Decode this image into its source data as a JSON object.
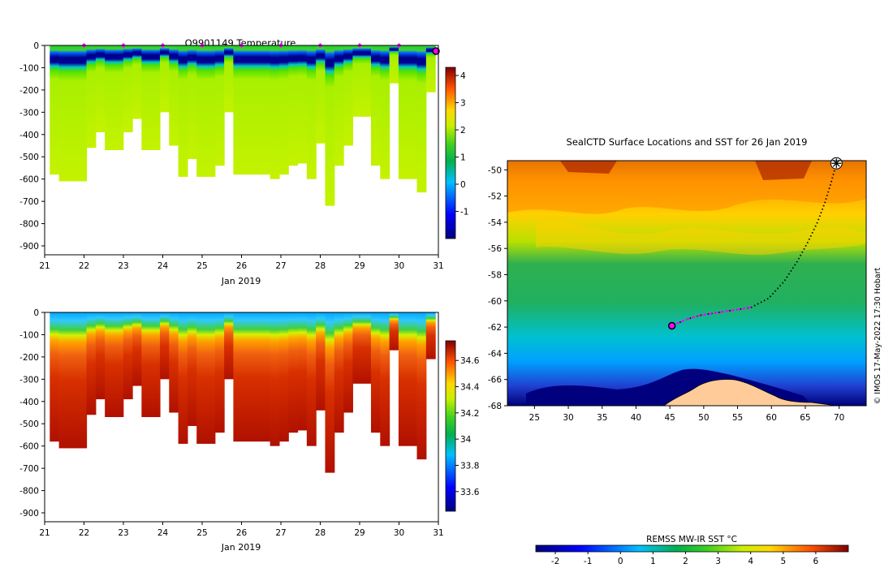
{
  "chart_data": [
    {
      "type": "heatmap",
      "id": "temperature",
      "title": "Q9901149  Temperature",
      "xlabel": "Jan 2019",
      "ylabel": "",
      "xlim": [
        21,
        31
      ],
      "ylim": [
        -940,
        0
      ],
      "x_ticks": [
        "21",
        "22",
        "23",
        "24",
        "25",
        "26",
        "27",
        "28",
        "29",
        "30",
        "31"
      ],
      "y_ticks": [
        "0",
        "-100",
        "-200",
        "-300",
        "-400",
        "-500",
        "-600",
        "-700",
        "-800",
        "-900"
      ],
      "colorbar": {
        "min": -2,
        "max": 4.3,
        "ticks": [
          "-1",
          "0",
          "1",
          "2",
          "3",
          "4"
        ]
      },
      "surface_markers_day": [
        22,
        23,
        24,
        25,
        26,
        27,
        28,
        29,
        30
      ],
      "profile_depths": [
        580,
        610,
        610,
        610,
        460,
        390,
        470,
        470,
        390,
        330,
        470,
        470,
        300,
        450,
        590,
        510,
        590,
        590,
        540,
        300,
        580,
        580,
        580,
        580,
        600,
        580,
        540,
        530,
        600,
        440,
        720,
        540,
        450,
        320,
        320,
        540,
        600,
        170,
        600,
        600,
        660,
        210
      ]
    },
    {
      "type": "heatmap",
      "id": "salinity",
      "title": "",
      "xlabel": "Jan 2019",
      "ylabel": "",
      "xlim": [
        21,
        31
      ],
      "ylim": [
        -940,
        0
      ],
      "x_ticks": [
        "21",
        "22",
        "23",
        "24",
        "25",
        "26",
        "27",
        "28",
        "29",
        "30",
        "31"
      ],
      "y_ticks": [
        "0",
        "-100",
        "-200",
        "-300",
        "-400",
        "-500",
        "-600",
        "-700",
        "-800",
        "-900"
      ],
      "colorbar": {
        "min": 33.45,
        "max": 34.75,
        "ticks": [
          "33.6",
          "33.8",
          "34",
          "34.2",
          "34.4",
          "34.6"
        ]
      }
    },
    {
      "type": "heatmap",
      "id": "sst_map",
      "title": "SealCTD Surface Locations and SST for 26 Jan 2019",
      "xlabel": "",
      "ylabel": "",
      "xlim": [
        21,
        74
      ],
      "ylim": [
        -68,
        -49.3
      ],
      "x_ticks": [
        "25",
        "30",
        "35",
        "40",
        "45",
        "50",
        "55",
        "60",
        "65",
        "70"
      ],
      "y_ticks": [
        "-50",
        "-52",
        "-54",
        "-56",
        "-58",
        "-60",
        "-62",
        "-64",
        "-66",
        "-68"
      ],
      "track": [
        [
          69.6,
          -49.5
        ],
        [
          68.8,
          -51
        ],
        [
          67.9,
          -52.5
        ],
        [
          66.8,
          -54
        ],
        [
          65.4,
          -55.5
        ],
        [
          63.8,
          -57
        ],
        [
          61.9,
          -58.5
        ],
        [
          59.6,
          -59.8
        ],
        [
          57,
          -60.5
        ],
        [
          54.5,
          -60.7
        ],
        [
          52,
          -60.9
        ],
        [
          49.5,
          -61.1
        ],
        [
          47.5,
          -61.4
        ],
        [
          45.3,
          -61.9
        ]
      ],
      "track_highlight_from_lon": 57,
      "start_point": [
        69.6,
        -49.5
      ],
      "current_point": [
        45.3,
        -61.9
      ],
      "colorbar": {
        "label": "REMSS MW-IR SST °C",
        "min": -2.6,
        "max": 7,
        "ticks": [
          "-2",
          "-1",
          "0",
          "1",
          "2",
          "3",
          "4",
          "5",
          "6"
        ]
      },
      "credit": "© IMOS 17-May-2022 17:30 Hobart"
    }
  ]
}
